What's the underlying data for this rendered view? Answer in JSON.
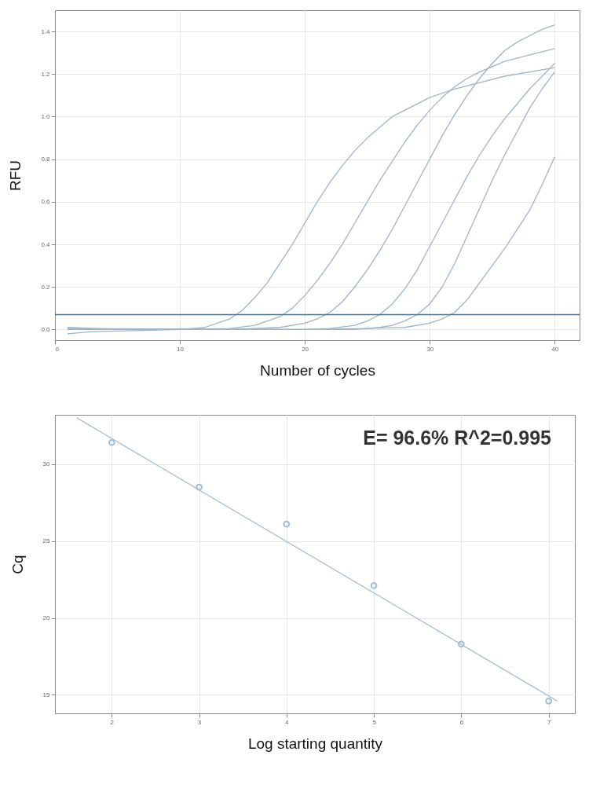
{
  "chart_data": [
    {
      "type": "line",
      "xlabel": "Number of cycles",
      "ylabel": "RFU",
      "xlim": [
        0,
        42
      ],
      "ylim": [
        -0.05,
        1.5
      ],
      "xticks": [
        0,
        10,
        20,
        30,
        40
      ],
      "yticks": [
        {
          "value": 0,
          "label": "0.0"
        },
        {
          "value": 0.2,
          "label": "0.2"
        },
        {
          "value": 0.4,
          "label": "0.4"
        },
        {
          "value": 0.6,
          "label": "0.6"
        },
        {
          "value": 0.8,
          "label": "0.8"
        },
        {
          "value": 1.0,
          "label": "1.0"
        },
        {
          "value": 1.2,
          "label": "1.2"
        },
        {
          "value": 1.4,
          "label": "1.4"
        }
      ],
      "grid": true,
      "series": [
        {
          "color": "#9fb4c8",
          "x": [
            1,
            5,
            10,
            12,
            14,
            15,
            16,
            17,
            18,
            19,
            20,
            21,
            22,
            23,
            24,
            25,
            26,
            27,
            28,
            30,
            32,
            34,
            36,
            38,
            40
          ],
          "values": [
            0.01,
            0,
            0,
            0.01,
            0.05,
            0.09,
            0.15,
            0.22,
            0.31,
            0.4,
            0.5,
            0.6,
            0.69,
            0.77,
            0.84,
            0.9,
            0.95,
            1.0,
            1.03,
            1.09,
            1.13,
            1.16,
            1.19,
            1.21,
            1.23
          ]
        },
        {
          "color": "#9fb4c8",
          "x": [
            1,
            10,
            14,
            16,
            17,
            18,
            19,
            20,
            21,
            22,
            23,
            24,
            25,
            26,
            27,
            28,
            29,
            30,
            31,
            32,
            33,
            34,
            36,
            38,
            40
          ],
          "values": [
            0,
            0,
            0.005,
            0.02,
            0.04,
            0.06,
            0.1,
            0.16,
            0.23,
            0.31,
            0.4,
            0.5,
            0.6,
            0.7,
            0.79,
            0.88,
            0.96,
            1.03,
            1.09,
            1.14,
            1.18,
            1.21,
            1.26,
            1.29,
            1.32
          ]
        },
        {
          "color": "#9fb4c8",
          "x": [
            1,
            14,
            18,
            20,
            21,
            22,
            23,
            24,
            25,
            26,
            27,
            28,
            29,
            30,
            31,
            32,
            33,
            34,
            35,
            36,
            37,
            38,
            39,
            40
          ],
          "values": [
            0,
            0,
            0.01,
            0.03,
            0.05,
            0.08,
            0.13,
            0.2,
            0.28,
            0.37,
            0.47,
            0.58,
            0.69,
            0.8,
            0.91,
            1.01,
            1.1,
            1.18,
            1.25,
            1.31,
            1.35,
            1.38,
            1.41,
            1.43
          ]
        },
        {
          "color": "#9fb4c8",
          "x": [
            1,
            20,
            22,
            24,
            25,
            26,
            27,
            28,
            29,
            30,
            31,
            32,
            33,
            34,
            35,
            36,
            37,
            38,
            39,
            40
          ],
          "values": [
            0.005,
            0,
            0.005,
            0.02,
            0.04,
            0.07,
            0.12,
            0.19,
            0.28,
            0.39,
            0.5,
            0.61,
            0.72,
            0.82,
            0.91,
            0.99,
            1.06,
            1.13,
            1.19,
            1.25
          ]
        },
        {
          "color": "#9fb4c8",
          "x": [
            1,
            24,
            26,
            27,
            28,
            29,
            30,
            31,
            32,
            33,
            34,
            35,
            36,
            37,
            38,
            39,
            40
          ],
          "values": [
            0,
            0,
            0.01,
            0.02,
            0.04,
            0.07,
            0.12,
            0.2,
            0.31,
            0.44,
            0.57,
            0.7,
            0.82,
            0.93,
            1.04,
            1.13,
            1.21
          ]
        },
        {
          "color": "#9fb4c8",
          "x": [
            1,
            3,
            10,
            20,
            25,
            28,
            30,
            31,
            32,
            33,
            34,
            35,
            36,
            37,
            38,
            39,
            40
          ],
          "values": [
            -0.02,
            -0.01,
            0,
            0,
            0.005,
            0.01,
            0.03,
            0.05,
            0.08,
            0.14,
            0.22,
            0.3,
            0.38,
            0.47,
            0.56,
            0.68,
            0.81
          ]
        }
      ],
      "ref_lines": [
        {
          "axis": "y",
          "value": 0.07,
          "color": "#4a7090"
        }
      ]
    },
    {
      "type": "scatter",
      "xlabel": "Log starting quantity",
      "ylabel": "Cq",
      "xlim": [
        1.35,
        7.3
      ],
      "ylim": [
        13.8,
        33.2
      ],
      "xticks": [
        2,
        3,
        4,
        5,
        6,
        7
      ],
      "yticks": [
        15,
        20,
        25,
        30
      ],
      "grid": true,
      "annotations": [
        "E= 96.6% R^2=0.995"
      ],
      "series": [
        {
          "color": "#9fbfd8",
          "marker": "circle",
          "x": [
            2,
            3,
            4,
            5,
            6,
            7
          ],
          "values": [
            31.4,
            28.5,
            26.1,
            22.1,
            18.3,
            14.6
          ]
        },
        {
          "type": "line",
          "color": "#a8bfd6",
          "x": [
            1.6,
            7.1
          ],
          "values": [
            33.0,
            14.6
          ]
        }
      ]
    }
  ]
}
